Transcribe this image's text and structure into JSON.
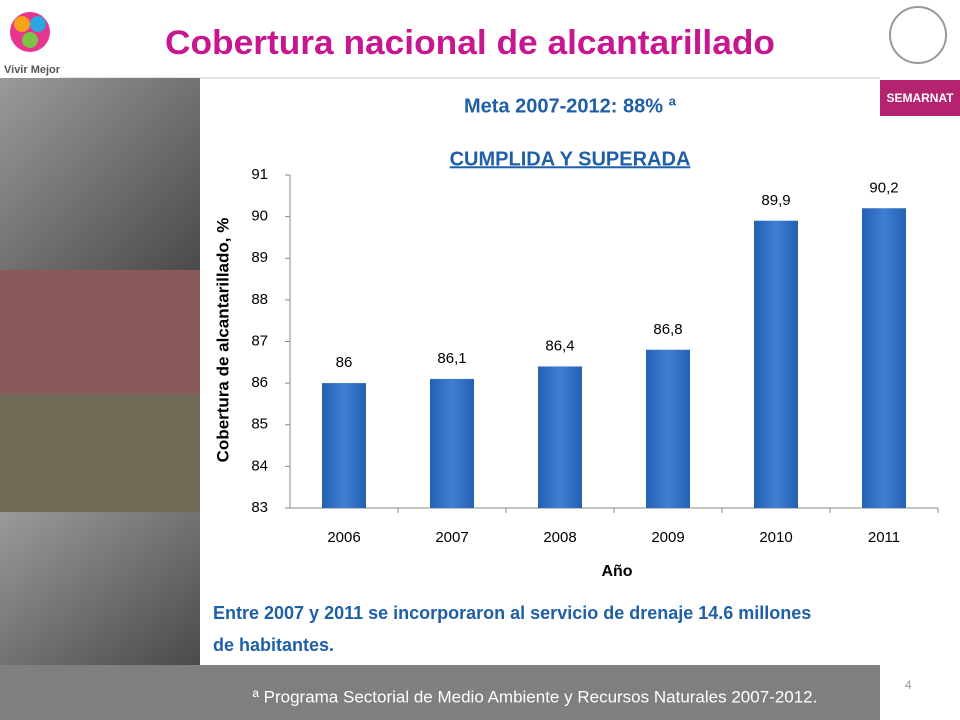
{
  "logo_text": "Vivir Mejor",
  "title": "Cobertura nacional de alcantarillado",
  "badge": "SEMARNAT",
  "goal": "Meta 2007-2012:  88% ª",
  "status": "CUMPLIDA Y SUPERADA",
  "note": [
    "Entre 2007 y 2011 se incorporaron al servicio de drenaje 14.6 millones",
    "de habitantes."
  ],
  "footnote": "ª Programa Sectorial de Medio Ambiente y Recursos Naturales 2007-2012.",
  "page_number": "4",
  "chart_data": {
    "type": "bar",
    "x_label": "Año",
    "y_label": "Cobertura de alcantarillado, %",
    "categories": [
      "2006",
      "2007",
      "2008",
      "2009",
      "2010",
      "2011"
    ],
    "values": [
      86,
      86.1,
      86.4,
      86.8,
      89.9,
      90.2
    ],
    "value_labels": [
      "86",
      "86,1",
      "86,4",
      "86,8",
      "89,9",
      "90,2"
    ],
    "color": "#2e6fc4",
    "ylim": [
      83,
      91
    ],
    "yticks": [
      83,
      84,
      85,
      86,
      87,
      88,
      89,
      90,
      91
    ],
    "grid": false
  }
}
